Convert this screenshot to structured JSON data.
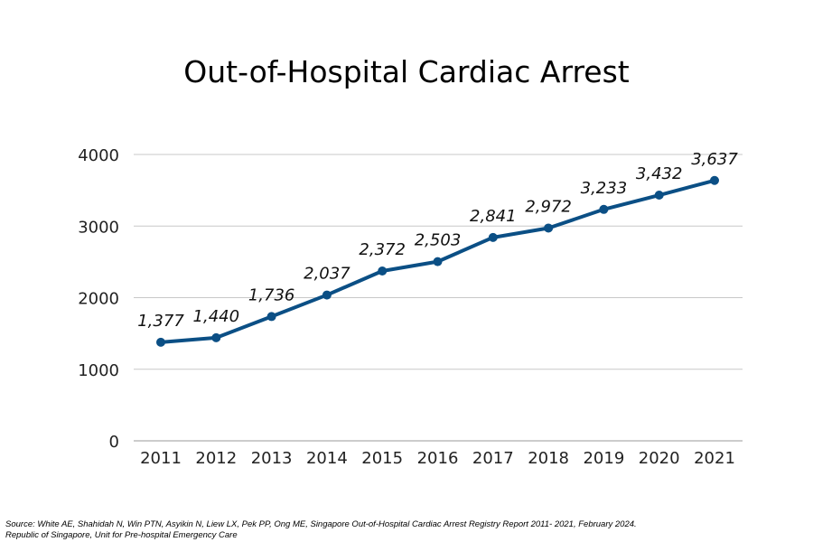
{
  "chart_data": {
    "type": "line",
    "title": "Out-of-Hospital Cardiac Arrest",
    "categories": [
      "2011",
      "2012",
      "2013",
      "2014",
      "2015",
      "2016",
      "2017",
      "2018",
      "2019",
      "2020",
      "2021"
    ],
    "values": [
      1377,
      1440,
      1736,
      2037,
      2372,
      2503,
      2841,
      2972,
      3233,
      3432,
      3637
    ],
    "data_labels": [
      "1,377",
      "1,440",
      "1,736",
      "2,037",
      "2,372",
      "2,503",
      "2,841",
      "2,972",
      "3,233",
      "3,432",
      "3,637"
    ],
    "y_ticks": [
      "0",
      "1000",
      "2000",
      "3000",
      "4000"
    ],
    "ylim": [
      0,
      4000
    ],
    "grid": true,
    "line_color": "#0b4f85",
    "xlabel": "",
    "ylabel": ""
  },
  "source": {
    "line1": "Source: White AE, Shahidah N, Win PTN, Asyikin N, Liew LX, Pek PP, Ong ME, Singapore Out-of-Hospital Cardiac Arrest Registry Report 2011- 2021, February 2024.",
    "line2": "Republic of Singapore, Unit for Pre-hospital Emergency Care"
  }
}
